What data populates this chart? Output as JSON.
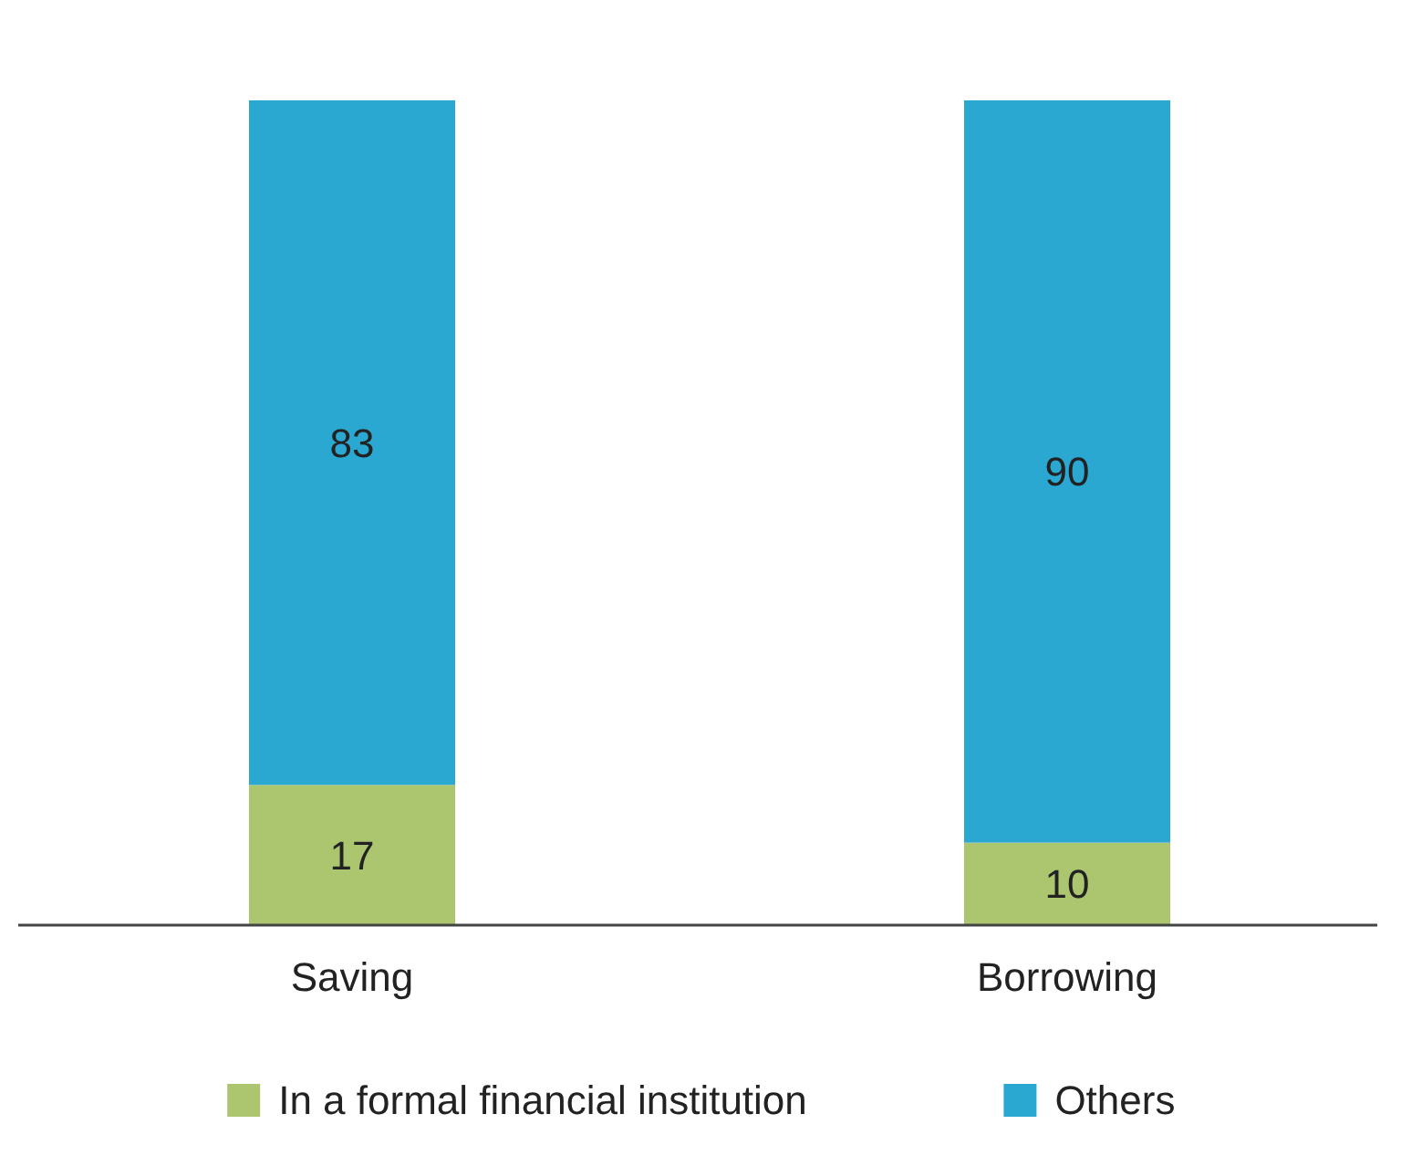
{
  "chart_data": {
    "type": "bar",
    "stacked": true,
    "categories": [
      "Saving",
      "Borrowing"
    ],
    "series": [
      {
        "name": "In a formal financial institution",
        "color": "#abc66e",
        "values": [
          17,
          10
        ]
      },
      {
        "name": "Others",
        "color": "#2aa8d1",
        "values": [
          83,
          90
        ]
      }
    ],
    "data_labels": true,
    "legend": "bottom"
  }
}
